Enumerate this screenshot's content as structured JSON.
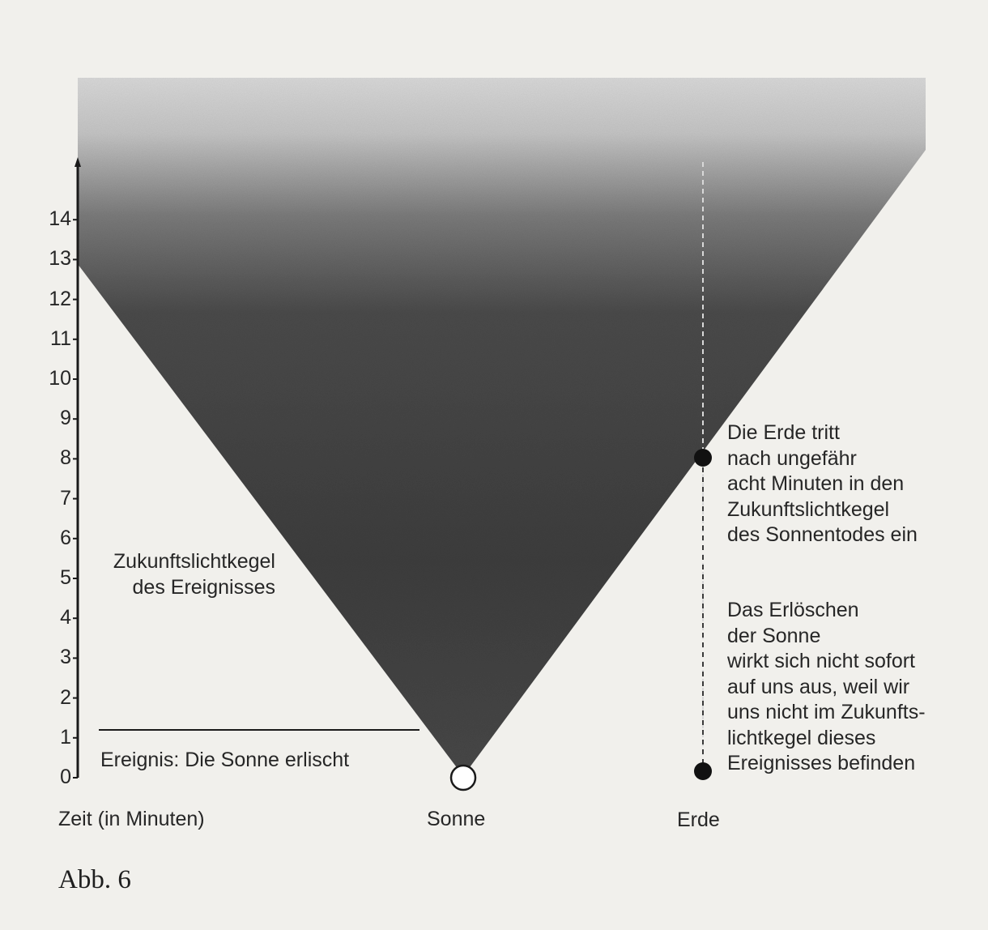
{
  "axis": {
    "label": "Zeit (in Minuten)",
    "ticks": [
      "0",
      "1",
      "2",
      "3",
      "4",
      "5",
      "6",
      "7",
      "8",
      "9",
      "10",
      "11",
      "12",
      "13",
      "14"
    ]
  },
  "cone": {
    "label_lines": [
      "Zukunftslichtkegel",
      "des Ereignisses"
    ]
  },
  "event": {
    "label": "Ereignis: Die Sonne erlischt",
    "time_minutes": 0
  },
  "sun": {
    "label": "Sonne"
  },
  "earth": {
    "label": "Erde",
    "enters_cone_minutes": 8,
    "upper_note_lines": [
      "Die Erde tritt",
      "nach ungefähr",
      "acht Minuten in den",
      "Zukunftslichtkegel",
      "des Sonnentodes ein"
    ],
    "lower_note_lines": [
      "Das Erlöschen",
      "der Sonne",
      "wirkt sich nicht sofort",
      "auf uns aus, weil wir",
      "uns nicht im Zukunfts-",
      "lichtkegel dieses",
      "Ereignisses befinden"
    ]
  },
  "caption": "Abb. 6",
  "colors": {
    "cone_dark": "#3c3c3c",
    "cone_fade": "#d6d6d6",
    "ink": "#222222",
    "paper": "#f1f0ec"
  }
}
